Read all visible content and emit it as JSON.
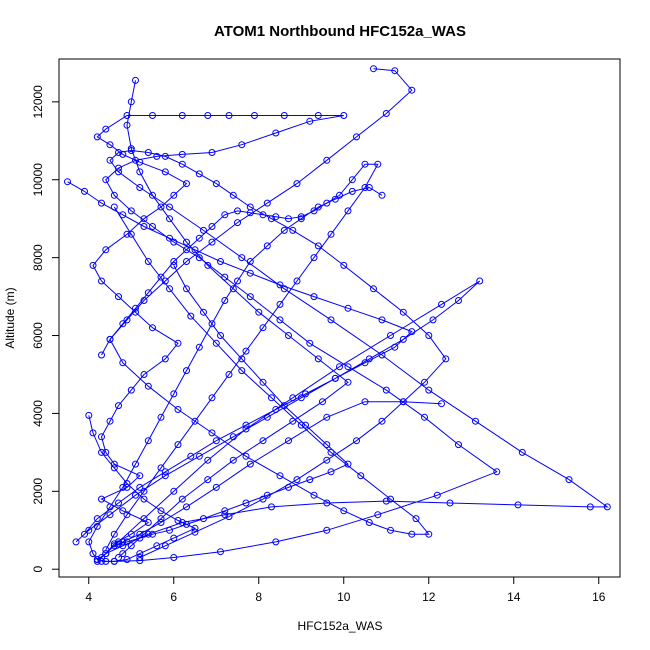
{
  "chart_data": {
    "type": "scatter",
    "title": "ATOM1 Northbound HFC152a_WAS",
    "xlabel": "HFC152a_WAS",
    "ylabel": "Altitude (m)",
    "xlim": [
      3.3,
      16.5
    ],
    "ylim": [
      -200,
      13100
    ],
    "xticks": [
      4,
      6,
      8,
      10,
      12,
      14,
      16
    ],
    "yticks": [
      0,
      2000,
      4000,
      6000,
      8000,
      10000,
      12000
    ],
    "color": "#0000ff",
    "grid": false,
    "legend": "none",
    "points_connected": true,
    "series": [
      {
        "x": [
          4.2,
          4.4,
          4.6,
          5.0,
          5.4,
          4.8,
          4.3,
          4.9,
          5.2,
          4.6,
          4.4,
          4.3,
          4.5,
          4.7,
          5.0,
          5.3,
          5.8,
          6.1,
          5.5,
          5.1,
          4.7,
          4.3,
          4.1,
          4.4,
          4.9,
          5.3,
          5.7,
          6.0,
          6.3,
          5.8,
          5.2,
          4.8,
          4.5,
          4.2,
          4.4,
          4.9,
          5.5,
          6.2,
          6.8,
          7.3,
          7.9,
          8.6,
          9.4,
          10.0,
          9.2,
          8.4,
          7.6,
          6.9,
          6.2,
          5.6,
          5.1,
          4.7,
          4.4,
          4.6,
          5.0,
          5.5,
          6.0,
          6.6,
          7.2,
          7.8,
          8.5,
          9.2,
          10.1,
          11.0,
          11.9,
          12.7,
          13.6,
          12.2,
          10.8,
          9.6,
          8.4,
          7.1,
          6.0,
          5.2,
          4.6,
          4.3
        ],
        "y": [
          200,
          400,
          650,
          900,
          1200,
          1500,
          1800,
          2100,
          2400,
          2700,
          3000,
          3400,
          3800,
          4200,
          4600,
          5000,
          5400,
          5800,
          6200,
          6600,
          7000,
          7400,
          7800,
          8200,
          8600,
          9000,
          9300,
          9600,
          9900,
          10200,
          10450,
          10650,
          10900,
          11100,
          11300,
          11650,
          11650,
          11650,
          11650,
          11650,
          11650,
          11650,
          11650,
          11650,
          11500,
          11200,
          10900,
          10700,
          10650,
          10600,
          10500,
          10300,
          10000,
          9600,
          9200,
          8800,
          8400,
          8000,
          7500,
          7000,
          6400,
          5800,
          5200,
          4600,
          3900,
          3200,
          2500,
          1900,
          1400,
          1000,
          700,
          450,
          300,
          220,
          200,
          200
        ]
      },
      {
        "x": [
          5.2,
          5.8,
          6.5,
          7.3,
          8.1,
          8.9,
          9.6,
          10.3,
          10.9,
          11.4,
          11.9,
          12.4,
          12.0,
          11.4,
          10.7,
          10.0,
          9.4,
          8.8,
          8.3,
          7.8,
          7.4,
          7.0,
          6.6,
          6.2,
          5.8,
          5.4,
          5.0,
          4.7,
          4.5,
          4.7,
          5.2,
          5.9,
          6.7,
          7.6,
          8.6,
          9.7,
          10.9,
          12.0,
          13.1,
          14.2,
          15.3,
          16.2,
          15.8,
          14.1,
          12.5,
          11.0,
          9.6,
          8.3,
          7.2,
          6.2,
          5.4,
          4.8,
          4.4,
          4.2
        ],
        "y": [
          300,
          600,
          950,
          1350,
          1800,
          2300,
          2800,
          3300,
          3800,
          4300,
          4800,
          5400,
          6000,
          6600,
          7200,
          7800,
          8300,
          8700,
          9000,
          9300,
          9600,
          9900,
          10150,
          10400,
          10600,
          10700,
          10750,
          10700,
          10500,
          10200,
          9800,
          9300,
          8700,
          8000,
          7200,
          6400,
          5500,
          4600,
          3800,
          3000,
          2300,
          1600,
          1600,
          1650,
          1700,
          1750,
          1700,
          1600,
          1400,
          1200,
          900,
          600,
          400,
          250
        ]
      },
      {
        "x": [
          3.5,
          3.9,
          4.3,
          4.8,
          5.3,
          5.9,
          6.5,
          7.1,
          7.8,
          8.5,
          9.3,
          10.1,
          10.9,
          11.6,
          11.2,
          10.5,
          9.8,
          9.1,
          8.4,
          7.7,
          7.0,
          6.4,
          5.8,
          5.2,
          4.7,
          4.2,
          3.9,
          3.7,
          4.0,
          4.5,
          5.1,
          5.8,
          6.6,
          7.4,
          8.2,
          9.0,
          9.8,
          10.6,
          11.4,
          12.1,
          12.7,
          13.2,
          12.3,
          11.1,
          9.9,
          8.8,
          7.7,
          6.8,
          6.0,
          5.3,
          4.7,
          4.3
        ],
        "y": [
          9950,
          9700,
          9400,
          9100,
          8800,
          8500,
          8200,
          7900,
          7600,
          7300,
          7000,
          6700,
          6400,
          6100,
          5700,
          5300,
          4900,
          4500,
          4100,
          3700,
          3300,
          2900,
          2500,
          2100,
          1700,
          1300,
          900,
          700,
          1000,
          1400,
          1900,
          2400,
          2900,
          3400,
          3900,
          4400,
          4900,
          5400,
          5900,
          6400,
          6900,
          7400,
          6800,
          6000,
          5200,
          4400,
          3600,
          2800,
          2000,
          1300,
          700,
          300
        ]
      },
      {
        "x": [
          10.7,
          11.2,
          11.6,
          11.0,
          10.3,
          9.6,
          8.9,
          8.2,
          7.5,
          6.9,
          6.3,
          5.8,
          5.3,
          4.9,
          4.5,
          4.8,
          5.4,
          6.1,
          6.9,
          7.7,
          8.5,
          9.3,
          10.0,
          10.6,
          11.1,
          11.6,
          12.0,
          11.7,
          11.1,
          10.4,
          9.7,
          9.0,
          8.3,
          7.6,
          7.0,
          6.4,
          5.9,
          5.4,
          5.0,
          4.6
        ],
        "y": [
          12850,
          12800,
          12300,
          11700,
          11100,
          10500,
          9900,
          9400,
          8900,
          8400,
          7900,
          7400,
          6900,
          6400,
          5900,
          5300,
          4700,
          4100,
          3500,
          2900,
          2400,
          1900,
          1500,
          1200,
          1000,
          900,
          900,
          1300,
          1800,
          2400,
          3000,
          3700,
          4400,
          5100,
          5800,
          6500,
          7200,
          7900,
          8600,
          9300
        ]
      },
      {
        "x": [
          4.0,
          4.1,
          4.3,
          4.6,
          4.9,
          5.3,
          5.7,
          6.1,
          6.5,
          6.0,
          5.6,
          5.2,
          4.9,
          4.6,
          4.4,
          4.2,
          4.1,
          4.0,
          4.2,
          4.5,
          4.8,
          5.1,
          5.4,
          5.7,
          6.0,
          6.3,
          6.6,
          6.9,
          7.2,
          7.5,
          7.8,
          8.2,
          8.6,
          9.0,
          9.4,
          9.8,
          10.2,
          10.6,
          10.9
        ],
        "y": [
          3950,
          3500,
          3000,
          2600,
          2200,
          1800,
          1500,
          1250,
          1050,
          800,
          600,
          400,
          250,
          200,
          200,
          250,
          400,
          700,
          1100,
          1600,
          2100,
          2700,
          3300,
          3900,
          4500,
          5100,
          5700,
          6300,
          6900,
          7400,
          7900,
          8300,
          8700,
          9000,
          9300,
          9500,
          9700,
          9800,
          9600
        ]
      },
      {
        "x": [
          4.3,
          4.5,
          4.8,
          5.1,
          5.4,
          5.7,
          6.0,
          6.3,
          6.6,
          6.9,
          7.2,
          7.5,
          7.8,
          8.1,
          8.4,
          8.7,
          9.0,
          9.3,
          9.6,
          9.9,
          10.2,
          10.5,
          10.8,
          10.5,
          10.1,
          9.7,
          9.3,
          8.9,
          8.5,
          8.1,
          7.7,
          7.3,
          6.9,
          6.5,
          6.1,
          5.7,
          5.3,
          4.9,
          4.6,
          4.4
        ],
        "y": [
          5500,
          5900,
          6300,
          6700,
          7100,
          7500,
          7900,
          8200,
          8500,
          8800,
          9100,
          9200,
          9150,
          9100,
          9050,
          9000,
          9050,
          9200,
          9400,
          9600,
          10000,
          10400,
          10400,
          9800,
          9200,
          8600,
          8000,
          7400,
          6800,
          6200,
          5600,
          5000,
          4400,
          3800,
          3200,
          2600,
          2000,
          1400,
          900,
          500
        ]
      },
      {
        "x": [
          6.0,
          6.3,
          6.7,
          7.1,
          7.6,
          8.1,
          8.6,
          9.1,
          9.6,
          10.1,
          9.7,
          9.2,
          8.7,
          8.2,
          7.7,
          7.2,
          6.7,
          6.3,
          5.9,
          5.5,
          5.2,
          4.9,
          4.7,
          4.6,
          4.8,
          5.2,
          5.7,
          6.3,
          7.0,
          7.8,
          8.7,
          9.6,
          10.5,
          11.4,
          12.3
        ],
        "y": [
          7800,
          7200,
          6600,
          6000,
          5400,
          4800,
          4200,
          3700,
          3200,
          2700,
          2500,
          2300,
          2100,
          1900,
          1700,
          1500,
          1300,
          1150,
          1000,
          900,
          800,
          700,
          650,
          600,
          700,
          900,
          1200,
          1600,
          2100,
          2700,
          3300,
          3900,
          4300,
          4300,
          4250
        ]
      },
      {
        "x": [
          5.1,
          5.0,
          4.9,
          5.0,
          5.2,
          5.5,
          5.9,
          6.3,
          6.8,
          7.4,
          8.0,
          8.7,
          9.4,
          10.1,
          9.5,
          8.8,
          8.1,
          7.4,
          6.8,
          6.2,
          5.7,
          5.3,
          5.0,
          4.8,
          4.7
        ],
        "y": [
          12550,
          12000,
          11400,
          10800,
          10200,
          9600,
          9000,
          8400,
          7800,
          7200,
          6600,
          6000,
          5400,
          4800,
          4300,
          3800,
          3300,
          2800,
          2300,
          1800,
          1300,
          900,
          600,
          400,
          300
        ]
      }
    ]
  }
}
